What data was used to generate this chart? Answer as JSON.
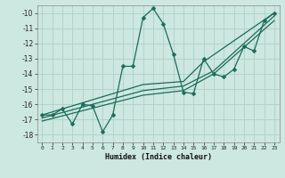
{
  "title": "",
  "xlabel": "Humidex (Indice chaleur)",
  "bg_color": "#cce8e0",
  "grid_color": "#b0d0c8",
  "line_color": "#1a6b5a",
  "xlim": [
    -0.5,
    23.5
  ],
  "ylim": [
    -18.5,
    -9.5
  ],
  "xtick_vals": [
    0,
    1,
    2,
    3,
    4,
    5,
    6,
    7,
    8,
    9,
    10,
    11,
    12,
    13,
    14,
    15,
    16,
    17,
    18,
    19,
    20,
    21,
    22,
    23
  ],
  "ytick_vals": [
    -18,
    -17,
    -16,
    -15,
    -14,
    -13,
    -12,
    -11,
    -10
  ],
  "series_main": {
    "x": [
      0,
      1,
      2,
      3,
      4,
      5,
      6,
      7,
      8,
      9,
      10,
      11,
      12,
      13,
      14,
      15,
      16,
      17,
      18,
      19,
      20,
      21,
      22,
      23
    ],
    "y": [
      -16.7,
      -16.7,
      -16.3,
      -17.3,
      -16.0,
      -16.1,
      -17.8,
      -16.7,
      -13.5,
      -13.5,
      -10.3,
      -9.7,
      -10.7,
      -12.7,
      -15.2,
      -15.3,
      -13.0,
      -14.0,
      -14.2,
      -13.7,
      -12.2,
      -12.5,
      -10.5,
      -10.0
    ]
  },
  "series_lines": [
    {
      "x": [
        0,
        10,
        14,
        16,
        23
      ],
      "y": [
        -16.7,
        -14.7,
        -14.5,
        -13.2,
        -10.0
      ]
    },
    {
      "x": [
        0,
        10,
        14,
        17,
        23
      ],
      "y": [
        -16.9,
        -15.1,
        -14.8,
        -13.8,
        -10.2
      ]
    },
    {
      "x": [
        0,
        10,
        14,
        17,
        23
      ],
      "y": [
        -17.1,
        -15.4,
        -15.1,
        -14.0,
        -10.5
      ]
    }
  ]
}
